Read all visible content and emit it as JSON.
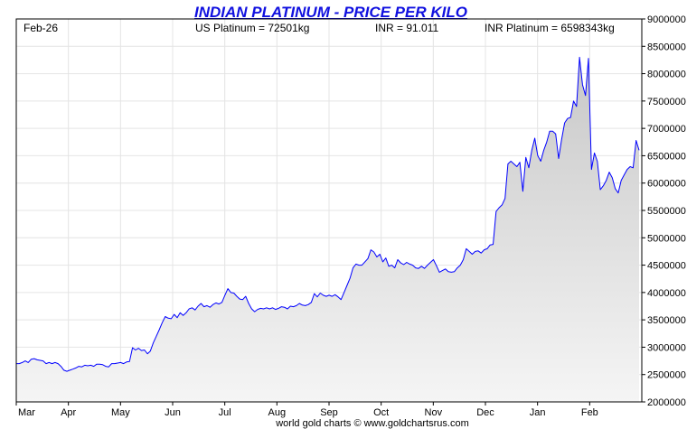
{
  "chart_data": {
    "type": "area",
    "title": "INDIAN PLATINUM - PRICE PER KILO",
    "header": {
      "date": "Feb-26",
      "us_price": "US Platinum = 72501kg",
      "inr_rate": "INR = 91.011",
      "inr_price": "INR Platinum = 6598343kg"
    },
    "credit": "world gold charts © www.goldchartsrus.com",
    "x_tick_labels": [
      "Mar",
      "Apr",
      "May",
      "Jun",
      "Jul",
      "Aug",
      "Sep",
      "Oct",
      "Nov",
      "Dec",
      "Jan",
      "Feb"
    ],
    "y_tick_labels": [
      "2000000",
      "2500000",
      "3000000",
      "3500000",
      "4000000",
      "4500000",
      "5000000",
      "5500000",
      "6000000",
      "6500000",
      "7000000",
      "7500000",
      "8000000",
      "8500000",
      "9000000"
    ],
    "ylim": [
      2000000,
      9000000
    ],
    "grid": true,
    "line_color": "#0000ff",
    "fill_top_color": "#c8c8c8",
    "fill_bottom_color": "#f5f5f5",
    "series": [
      {
        "values": [
          2700000,
          2700000,
          2720000,
          2750000,
          2720000,
          2780000,
          2790000,
          2770000,
          2760000,
          2750000,
          2700000,
          2720000,
          2700000,
          2720000,
          2700000,
          2650000,
          2580000,
          2560000,
          2580000,
          2600000,
          2620000,
          2650000,
          2640000,
          2670000,
          2660000,
          2670000,
          2650000,
          2690000,
          2690000,
          2680000,
          2650000,
          2640000,
          2700000,
          2700000,
          2710000,
          2720000,
          2700000,
          2730000,
          2740000,
          2990000,
          2950000,
          2980000,
          2940000,
          2950000,
          2880000,
          2930000,
          3080000,
          3200000,
          3320000,
          3450000,
          3560000,
          3530000,
          3520000,
          3600000,
          3540000,
          3630000,
          3580000,
          3630000,
          3700000,
          3720000,
          3680000,
          3750000,
          3800000,
          3740000,
          3760000,
          3730000,
          3780000,
          3810000,
          3790000,
          3820000,
          3950000,
          4070000,
          4000000,
          3990000,
          3930000,
          3880000,
          3870000,
          3930000,
          3800000,
          3700000,
          3650000,
          3690000,
          3710000,
          3700000,
          3720000,
          3700000,
          3720000,
          3690000,
          3710000,
          3740000,
          3730000,
          3700000,
          3750000,
          3740000,
          3760000,
          3800000,
          3770000,
          3760000,
          3780000,
          3820000,
          3980000,
          3920000,
          3990000,
          3950000,
          3930000,
          3950000,
          3930000,
          3960000,
          3920000,
          3870000,
          4000000,
          4130000,
          4260000,
          4450000,
          4520000,
          4500000,
          4500000,
          4560000,
          4620000,
          4780000,
          4740000,
          4650000,
          4700000,
          4560000,
          4630000,
          4480000,
          4500000,
          4450000,
          4600000,
          4540000,
          4510000,
          4550000,
          4520000,
          4500000,
          4450000,
          4440000,
          4480000,
          4440000,
          4500000,
          4550000,
          4600000,
          4490000,
          4370000,
          4400000,
          4430000,
          4380000,
          4370000,
          4380000,
          4450000,
          4500000,
          4600000,
          4800000,
          4750000,
          4700000,
          4750000,
          4760000,
          4720000,
          4780000,
          4800000,
          4870000,
          4880000,
          5480000,
          5550000,
          5600000,
          5720000,
          6350000,
          6400000,
          6350000,
          6300000,
          6380000,
          5850000,
          6470000,
          6280000,
          6600000,
          6820000,
          6500000,
          6400000,
          6600000,
          6750000,
          6950000,
          6950000,
          6900000,
          6450000,
          6800000,
          7100000,
          7180000,
          7200000,
          7500000,
          7400000,
          8300000,
          7800000,
          7600000,
          8280000,
          6250000,
          6550000,
          6400000,
          5880000,
          5950000,
          6050000,
          6200000,
          6100000,
          5900000,
          5820000,
          6050000,
          6150000,
          6250000,
          6300000,
          6280000,
          6780000,
          6600000
        ]
      }
    ]
  }
}
